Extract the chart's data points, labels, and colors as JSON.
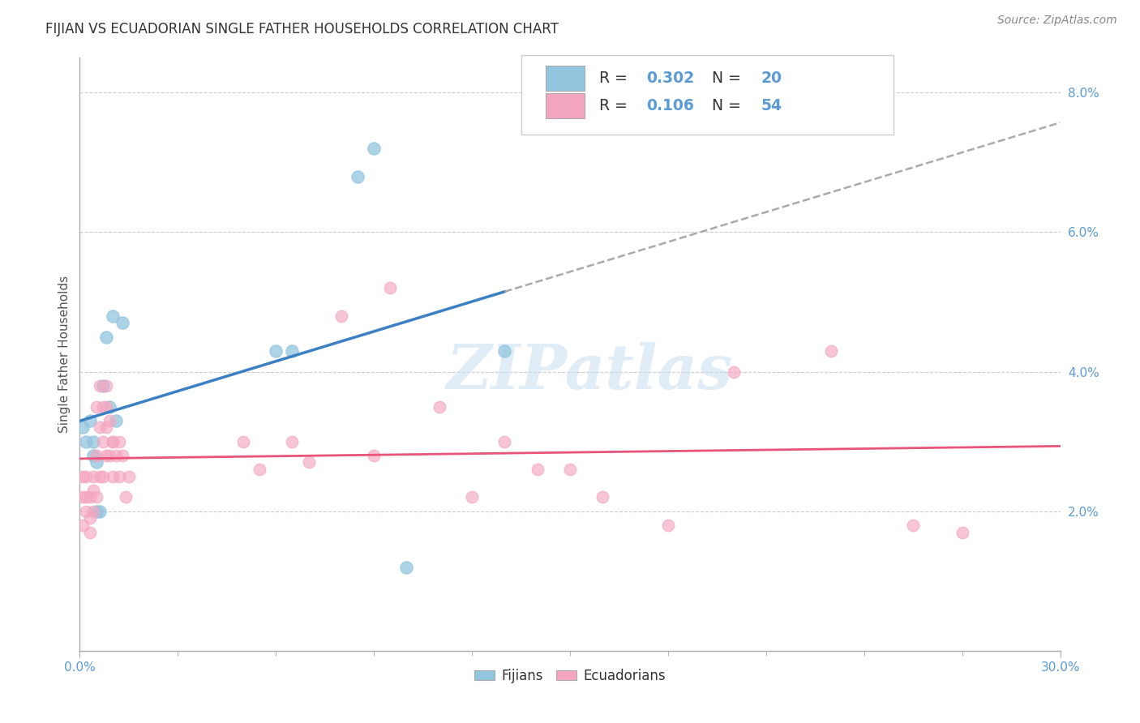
{
  "title": "FIJIAN VS ECUADORIAN SINGLE FATHER HOUSEHOLDS CORRELATION CHART",
  "source": "Source: ZipAtlas.com",
  "ylabel": "Single Father Households",
  "watermark": "ZIPatlas",
  "xlim": [
    0.0,
    0.3
  ],
  "ylim": [
    0.0,
    0.085
  ],
  "yticks_right": [
    0.02,
    0.04,
    0.06,
    0.08
  ],
  "fijian_color": "#92c5de",
  "ecuadorian_color": "#f4a6c0",
  "fijian_line_color": "#3b7fc4",
  "ecuadorian_line_color": "#e8547a",
  "fijian_R": 0.302,
  "fijian_N": 20,
  "ecuadorian_R": 0.106,
  "ecuadorian_N": 54,
  "fijian_points": [
    [
      0.001,
      0.032
    ],
    [
      0.002,
      0.03
    ],
    [
      0.003,
      0.033
    ],
    [
      0.004,
      0.03
    ],
    [
      0.004,
      0.028
    ],
    [
      0.005,
      0.027
    ],
    [
      0.005,
      0.02
    ],
    [
      0.006,
      0.02
    ],
    [
      0.007,
      0.038
    ],
    [
      0.008,
      0.045
    ],
    [
      0.009,
      0.035
    ],
    [
      0.01,
      0.048
    ],
    [
      0.011,
      0.033
    ],
    [
      0.013,
      0.047
    ],
    [
      0.06,
      0.043
    ],
    [
      0.065,
      0.043
    ],
    [
      0.09,
      0.072
    ],
    [
      0.1,
      0.012
    ],
    [
      0.13,
      0.043
    ],
    [
      0.085,
      0.068
    ]
  ],
  "ecuadorian_points": [
    [
      0.001,
      0.025
    ],
    [
      0.001,
      0.022
    ],
    [
      0.001,
      0.018
    ],
    [
      0.002,
      0.025
    ],
    [
      0.002,
      0.022
    ],
    [
      0.002,
      0.02
    ],
    [
      0.003,
      0.022
    ],
    [
      0.003,
      0.019
    ],
    [
      0.003,
      0.017
    ],
    [
      0.004,
      0.025
    ],
    [
      0.004,
      0.023
    ],
    [
      0.004,
      0.02
    ],
    [
      0.005,
      0.035
    ],
    [
      0.005,
      0.028
    ],
    [
      0.005,
      0.022
    ],
    [
      0.006,
      0.038
    ],
    [
      0.006,
      0.032
    ],
    [
      0.006,
      0.025
    ],
    [
      0.007,
      0.035
    ],
    [
      0.007,
      0.03
    ],
    [
      0.007,
      0.025
    ],
    [
      0.008,
      0.035
    ],
    [
      0.008,
      0.028
    ],
    [
      0.008,
      0.038
    ],
    [
      0.008,
      0.032
    ],
    [
      0.009,
      0.033
    ],
    [
      0.009,
      0.028
    ],
    [
      0.01,
      0.03
    ],
    [
      0.01,
      0.025
    ],
    [
      0.01,
      0.03
    ],
    [
      0.011,
      0.028
    ],
    [
      0.012,
      0.03
    ],
    [
      0.012,
      0.025
    ],
    [
      0.013,
      0.028
    ],
    [
      0.014,
      0.022
    ],
    [
      0.015,
      0.025
    ],
    [
      0.05,
      0.03
    ],
    [
      0.055,
      0.026
    ],
    [
      0.065,
      0.03
    ],
    [
      0.07,
      0.027
    ],
    [
      0.08,
      0.048
    ],
    [
      0.09,
      0.028
    ],
    [
      0.095,
      0.052
    ],
    [
      0.11,
      0.035
    ],
    [
      0.12,
      0.022
    ],
    [
      0.13,
      0.03
    ],
    [
      0.14,
      0.026
    ],
    [
      0.15,
      0.026
    ],
    [
      0.16,
      0.022
    ],
    [
      0.18,
      0.018
    ],
    [
      0.2,
      0.04
    ],
    [
      0.23,
      0.043
    ],
    [
      0.255,
      0.018
    ],
    [
      0.27,
      0.017
    ]
  ],
  "background_color": "#ffffff",
  "grid_color": "#cccccc"
}
